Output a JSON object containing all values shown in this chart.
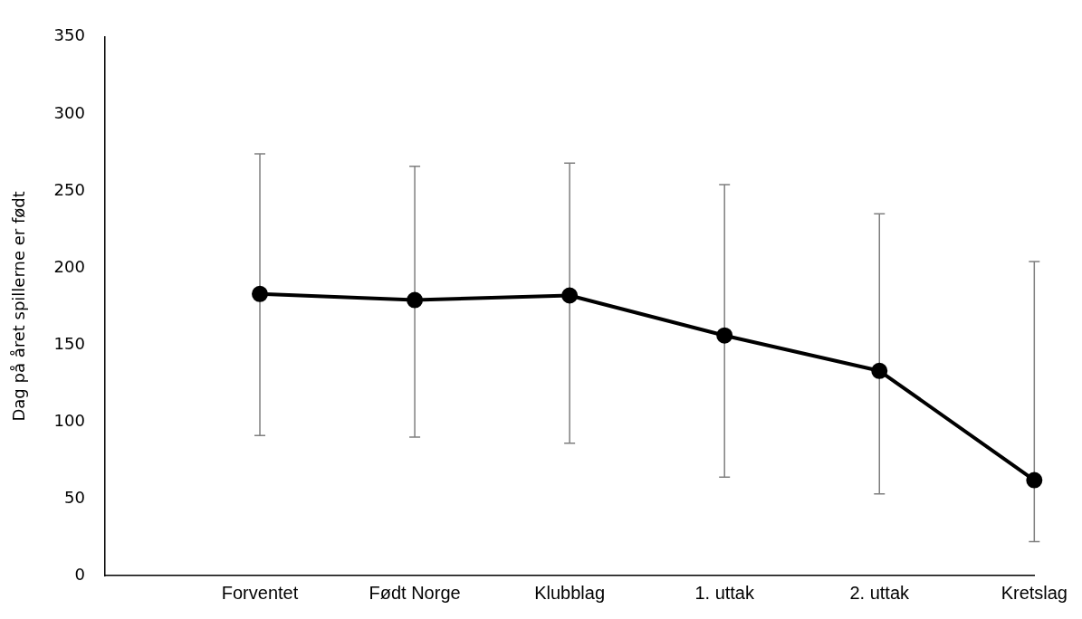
{
  "chart_data": {
    "type": "line",
    "ylabel": "Dag på året spillerne er født",
    "categories": [
      null,
      "Forventet",
      "Født Norge",
      "Klubblag",
      "1. uttak",
      "2. uttak",
      "Kretslag"
    ],
    "series": [
      {
        "color": "#000000",
        "values": [
          null,
          183,
          179,
          182,
          156,
          133,
          62
        ],
        "errors": [
          null,
          [
            91,
            274
          ],
          [
            90,
            266
          ],
          [
            86,
            268
          ],
          [
            64,
            254
          ],
          [
            53,
            235
          ],
          [
            22,
            204
          ]
        ]
      }
    ],
    "ylim": [
      0,
      350
    ],
    "yticks": [
      0,
      50,
      100,
      150,
      200,
      250,
      300,
      350
    ],
    "grid": false,
    "legend": false,
    "marker": "circle",
    "line_style": "solid"
  }
}
